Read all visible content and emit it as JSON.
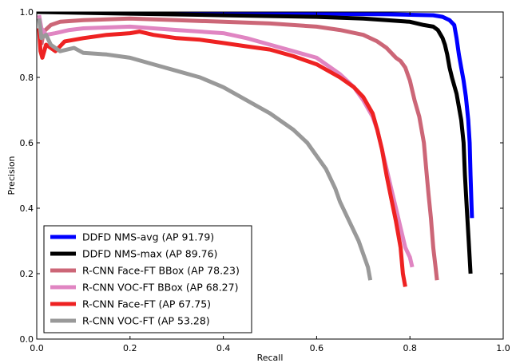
{
  "chart_data": {
    "type": "line",
    "title": "",
    "xlabel": "Recall",
    "ylabel": "Precision",
    "xlim": [
      0.0,
      1.0
    ],
    "ylim": [
      0.0,
      1.0
    ],
    "x_ticks": [
      "0.0",
      "0.2",
      "0.4",
      "0.6",
      "0.8",
      "1.0"
    ],
    "y_ticks": [
      "0.0",
      "0.2",
      "0.4",
      "0.6",
      "0.8",
      "1.0"
    ],
    "grid": false,
    "legend_position": "bottom-left",
    "series": [
      {
        "name": "DDFD NMS-avg (AP 91.79)",
        "color": "#0000ff",
        "points": [
          [
            0.0,
            1.0
          ],
          [
            0.2,
            1.0
          ],
          [
            0.4,
            0.997
          ],
          [
            0.6,
            0.995
          ],
          [
            0.75,
            0.993
          ],
          [
            0.85,
            0.99
          ],
          [
            0.87,
            0.985
          ],
          [
            0.885,
            0.975
          ],
          [
            0.895,
            0.96
          ],
          [
            0.9,
            0.92
          ],
          [
            0.905,
            0.87
          ],
          [
            0.91,
            0.83
          ],
          [
            0.915,
            0.79
          ],
          [
            0.92,
            0.74
          ],
          [
            0.925,
            0.67
          ],
          [
            0.928,
            0.6
          ],
          [
            0.93,
            0.5
          ],
          [
            0.932,
            0.41
          ],
          [
            0.933,
            0.37
          ]
        ]
      },
      {
        "name": "DDFD NMS-max (AP 89.76)",
        "color": "#000000",
        "points": [
          [
            0.0,
            1.0
          ],
          [
            0.2,
            0.995
          ],
          [
            0.4,
            0.99
          ],
          [
            0.6,
            0.985
          ],
          [
            0.7,
            0.98
          ],
          [
            0.75,
            0.975
          ],
          [
            0.8,
            0.97
          ],
          [
            0.83,
            0.96
          ],
          [
            0.85,
            0.955
          ],
          [
            0.86,
            0.945
          ],
          [
            0.87,
            0.92
          ],
          [
            0.875,
            0.9
          ],
          [
            0.88,
            0.87
          ],
          [
            0.885,
            0.83
          ],
          [
            0.89,
            0.8
          ],
          [
            0.9,
            0.75
          ],
          [
            0.905,
            0.71
          ],
          [
            0.91,
            0.67
          ],
          [
            0.915,
            0.6
          ],
          [
            0.918,
            0.5
          ],
          [
            0.922,
            0.4
          ],
          [
            0.926,
            0.3
          ],
          [
            0.93,
            0.2
          ]
        ]
      },
      {
        "name": "R-CNN Face-FT BBox (AP 78.23)",
        "color": "#cc6677",
        "points": [
          [
            0.01,
            0.9
          ],
          [
            0.015,
            0.94
          ],
          [
            0.03,
            0.96
          ],
          [
            0.05,
            0.97
          ],
          [
            0.1,
            0.975
          ],
          [
            0.2,
            0.98
          ],
          [
            0.3,
            0.975
          ],
          [
            0.4,
            0.97
          ],
          [
            0.5,
            0.965
          ],
          [
            0.6,
            0.955
          ],
          [
            0.65,
            0.945
          ],
          [
            0.7,
            0.93
          ],
          [
            0.73,
            0.91
          ],
          [
            0.75,
            0.89
          ],
          [
            0.77,
            0.86
          ],
          [
            0.78,
            0.85
          ],
          [
            0.79,
            0.83
          ],
          [
            0.8,
            0.79
          ],
          [
            0.81,
            0.73
          ],
          [
            0.82,
            0.68
          ],
          [
            0.83,
            0.6
          ],
          [
            0.835,
            0.52
          ],
          [
            0.84,
            0.44
          ],
          [
            0.845,
            0.37
          ],
          [
            0.85,
            0.28
          ],
          [
            0.855,
            0.22
          ],
          [
            0.858,
            0.18
          ]
        ]
      },
      {
        "name": "R-CNN VOC-FT BBox (AP 68.27)",
        "color": "#e085c2",
        "points": [
          [
            0.005,
            0.99
          ],
          [
            0.01,
            0.95
          ],
          [
            0.02,
            0.93
          ],
          [
            0.04,
            0.935
          ],
          [
            0.07,
            0.945
          ],
          [
            0.1,
            0.95
          ],
          [
            0.2,
            0.955
          ],
          [
            0.3,
            0.945
          ],
          [
            0.4,
            0.935
          ],
          [
            0.45,
            0.92
          ],
          [
            0.5,
            0.9
          ],
          [
            0.55,
            0.88
          ],
          [
            0.6,
            0.86
          ],
          [
            0.63,
            0.83
          ],
          [
            0.65,
            0.81
          ],
          [
            0.68,
            0.77
          ],
          [
            0.7,
            0.73
          ],
          [
            0.72,
            0.68
          ],
          [
            0.73,
            0.64
          ],
          [
            0.74,
            0.58
          ],
          [
            0.75,
            0.52
          ],
          [
            0.76,
            0.46
          ],
          [
            0.77,
            0.4
          ],
          [
            0.78,
            0.34
          ],
          [
            0.79,
            0.28
          ],
          [
            0.8,
            0.25
          ],
          [
            0.805,
            0.22
          ]
        ]
      },
      {
        "name": "R-CNN Face-FT (AP 67.75)",
        "color": "#ee2222",
        "points": [
          [
            0.005,
            0.95
          ],
          [
            0.008,
            0.88
          ],
          [
            0.012,
            0.86
          ],
          [
            0.02,
            0.9
          ],
          [
            0.04,
            0.88
          ],
          [
            0.06,
            0.91
          ],
          [
            0.1,
            0.92
          ],
          [
            0.15,
            0.93
          ],
          [
            0.2,
            0.935
          ],
          [
            0.22,
            0.94
          ],
          [
            0.25,
            0.93
          ],
          [
            0.3,
            0.92
          ],
          [
            0.35,
            0.915
          ],
          [
            0.4,
            0.905
          ],
          [
            0.45,
            0.895
          ],
          [
            0.5,
            0.885
          ],
          [
            0.55,
            0.865
          ],
          [
            0.6,
            0.84
          ],
          [
            0.65,
            0.8
          ],
          [
            0.68,
            0.77
          ],
          [
            0.7,
            0.74
          ],
          [
            0.72,
            0.69
          ],
          [
            0.73,
            0.64
          ],
          [
            0.74,
            0.58
          ],
          [
            0.75,
            0.5
          ],
          [
            0.76,
            0.43
          ],
          [
            0.77,
            0.36
          ],
          [
            0.78,
            0.28
          ],
          [
            0.785,
            0.2
          ],
          [
            0.79,
            0.16
          ]
        ]
      },
      {
        "name": "R-CNN VOC-FT (AP 53.28)",
        "color": "#999999",
        "points": [
          [
            0.005,
            0.98
          ],
          [
            0.01,
            0.92
          ],
          [
            0.02,
            0.93
          ],
          [
            0.03,
            0.9
          ],
          [
            0.05,
            0.88
          ],
          [
            0.08,
            0.89
          ],
          [
            0.1,
            0.875
          ],
          [
            0.15,
            0.87
          ],
          [
            0.2,
            0.86
          ],
          [
            0.25,
            0.84
          ],
          [
            0.3,
            0.82
          ],
          [
            0.35,
            0.8
          ],
          [
            0.4,
            0.77
          ],
          [
            0.45,
            0.73
          ],
          [
            0.5,
            0.69
          ],
          [
            0.55,
            0.64
          ],
          [
            0.58,
            0.6
          ],
          [
            0.6,
            0.56
          ],
          [
            0.62,
            0.52
          ],
          [
            0.64,
            0.46
          ],
          [
            0.65,
            0.42
          ],
          [
            0.67,
            0.36
          ],
          [
            0.69,
            0.3
          ],
          [
            0.7,
            0.26
          ],
          [
            0.71,
            0.22
          ],
          [
            0.715,
            0.18
          ]
        ]
      }
    ]
  }
}
